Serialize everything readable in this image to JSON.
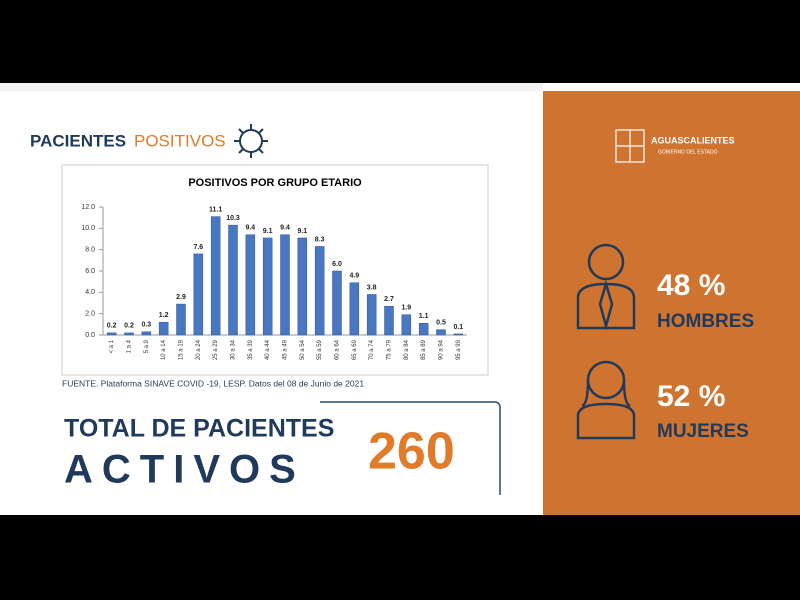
{
  "header": {
    "title_bold": "PACIENTES",
    "title_light": "POSITIVOS"
  },
  "chart_data": {
    "type": "bar",
    "title": "POSITIVOS POR GRUPO ETARIO",
    "categories": [
      "< a 1",
      "1 a 4",
      "5 a 9",
      "10 a 14",
      "15 a 19",
      "20 a 24",
      "25 a 29",
      "30 a 34",
      "35 a 39",
      "40 a 44",
      "45 a 49",
      "50 a 54",
      "55 a 59",
      "60 a 64",
      "65 a 69",
      "70 a 74",
      "75 a 79",
      "80 a 84",
      "85 a 89",
      "90 a 94",
      "95 a 99"
    ],
    "values": [
      0.2,
      0.2,
      0.3,
      1.2,
      2.9,
      7.6,
      11.1,
      10.3,
      9.4,
      9.1,
      9.4,
      9.1,
      8.3,
      6.0,
      4.9,
      3.8,
      2.7,
      1.9,
      1.1,
      0.5,
      0.1
    ],
    "value_labels": [
      "0.2",
      "0.2",
      "0.3",
      "1.2",
      "2.9",
      "7.6",
      "11.1",
      "10.3",
      "9.4",
      "9.1",
      "9.4",
      "9.1",
      "8.3",
      "6.0",
      "4.9",
      "3.8",
      "2.7",
      "1.9",
      "1.1",
      "0.5",
      "0.1"
    ],
    "color": "#4a78c0",
    "ylim": [
      0,
      12
    ],
    "yticks": [
      {
        "value": 0,
        "label": "0.0"
      },
      {
        "value": 2,
        "label": "2.0"
      },
      {
        "value": 4,
        "label": "4.0"
      },
      {
        "value": 6,
        "label": "6.0"
      },
      {
        "value": 8,
        "label": "8.0"
      },
      {
        "value": 10,
        "label": "10.0"
      },
      {
        "value": 12,
        "label": "12.0"
      }
    ],
    "grid": false
  },
  "source": "FUENTE. Plataforma SINAVE COVID -19, LESP. Datos del 08 de Junio de 2021",
  "total": {
    "line1": "TOTAL DE PACIENTES",
    "line2": "ACTIVOS",
    "count": "260"
  },
  "logo": {
    "name": "AGUASCALIENTES",
    "sub": "GOBIERNO DEL ESTADO"
  },
  "gender": {
    "men_pct": "48 %",
    "men_label": "HOMBRES",
    "women_pct": "52 %",
    "women_label": "MUJERES"
  }
}
